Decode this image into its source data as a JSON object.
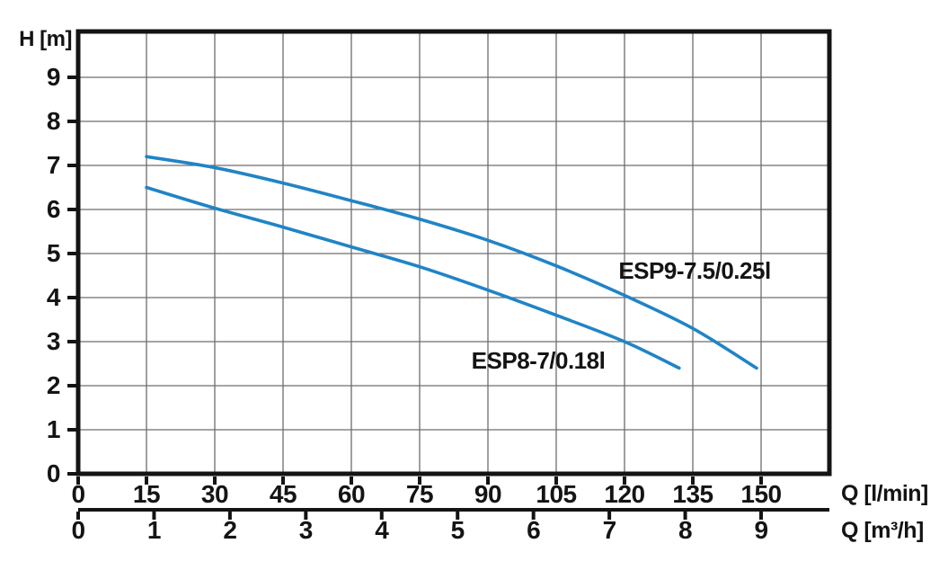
{
  "chart_data": {
    "type": "line",
    "title": "",
    "ylabel": "H [m]",
    "xlabel_primary": "Q [l/min]",
    "xlabel_secondary": "Q [m³/h]",
    "xlim_lmin": [
      0,
      165
    ],
    "xlim_m3h": [
      0,
      9.9
    ],
    "ylim": [
      0,
      10
    ],
    "grid": true,
    "legend_position": "inline-labels",
    "y_ticks": [
      0,
      1,
      2,
      3,
      4,
      5,
      6,
      7,
      8,
      9
    ],
    "x_ticks_lmin": [
      0,
      15,
      30,
      45,
      60,
      75,
      90,
      105,
      120,
      135,
      150
    ],
    "x_ticks_m3h": [
      0,
      1,
      2,
      3,
      4,
      5,
      6,
      7,
      8,
      9
    ],
    "series": [
      {
        "name": "ESP9-7.5/0.25l",
        "x_lmin": [
          15,
          30,
          45,
          60,
          75,
          90,
          105,
          120,
          135,
          149
        ],
        "h_m": [
          7.2,
          6.95,
          6.6,
          6.2,
          5.78,
          5.3,
          4.72,
          4.05,
          3.3,
          2.4
        ]
      },
      {
        "name": "ESP8-7/0.18l",
        "x_lmin": [
          15,
          30,
          45,
          60,
          75,
          90,
          105,
          120,
          132
        ],
        "h_m": [
          6.5,
          6.03,
          5.6,
          5.15,
          4.7,
          4.17,
          3.6,
          3.0,
          2.4
        ]
      }
    ],
    "colors": {
      "curve_blue": "#2084c6",
      "grid_gray": "#6d6d6d",
      "axis_black": "#141414"
    }
  }
}
